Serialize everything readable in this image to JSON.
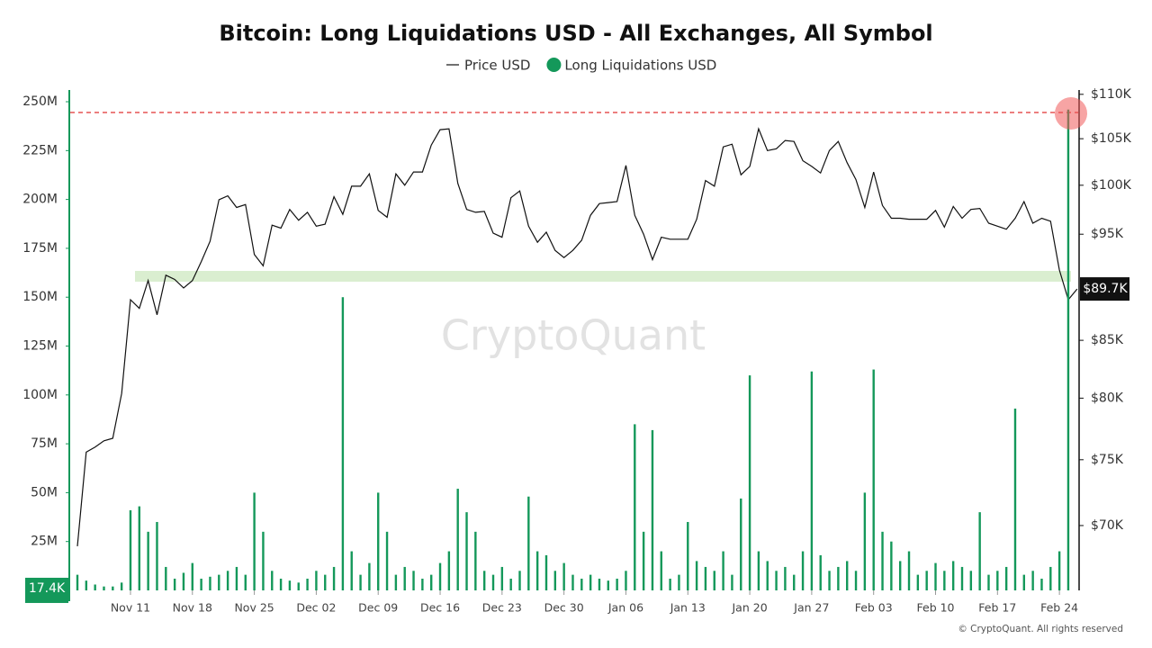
{
  "chart_data": {
    "type": "combo",
    "title": "Bitcoin: Long Liquidations USD - All Exchanges, All Symbol",
    "watermark": "CryptoQuant",
    "copyright": "© CryptoQuant. All rights reserved",
    "x": [
      "Nov 05",
      "Nov 06",
      "Nov 07",
      "Nov 08",
      "Nov 09",
      "Nov 10",
      "Nov 11",
      "Nov 12",
      "Nov 13",
      "Nov 14",
      "Nov 15",
      "Nov 16",
      "Nov 17",
      "Nov 18",
      "Nov 19",
      "Nov 20",
      "Nov 21",
      "Nov 22",
      "Nov 23",
      "Nov 24",
      "Nov 25",
      "Nov 26",
      "Nov 27",
      "Nov 28",
      "Nov 29",
      "Nov 30",
      "Dec 01",
      "Dec 02",
      "Dec 03",
      "Dec 04",
      "Dec 05",
      "Dec 06",
      "Dec 07",
      "Dec 08",
      "Dec 09",
      "Dec 10",
      "Dec 11",
      "Dec 12",
      "Dec 13",
      "Dec 14",
      "Dec 15",
      "Dec 16",
      "Dec 17",
      "Dec 18",
      "Dec 19",
      "Dec 20",
      "Dec 21",
      "Dec 22",
      "Dec 23",
      "Dec 24",
      "Dec 25",
      "Dec 26",
      "Dec 27",
      "Dec 28",
      "Dec 29",
      "Dec 30",
      "Dec 31",
      "Jan 01",
      "Jan 02",
      "Jan 03",
      "Jan 04",
      "Jan 05",
      "Jan 06",
      "Jan 07",
      "Jan 08",
      "Jan 09",
      "Jan 10",
      "Jan 11",
      "Jan 12",
      "Jan 13",
      "Jan 14",
      "Jan 15",
      "Jan 16",
      "Jan 17",
      "Jan 18",
      "Jan 19",
      "Jan 20",
      "Jan 21",
      "Jan 22",
      "Jan 23",
      "Jan 24",
      "Jan 25",
      "Jan 26",
      "Jan 27",
      "Jan 28",
      "Jan 29",
      "Jan 30",
      "Jan 31",
      "Feb 01",
      "Feb 02",
      "Feb 03",
      "Feb 04",
      "Feb 05",
      "Feb 06",
      "Feb 07",
      "Feb 08",
      "Feb 09",
      "Feb 10",
      "Feb 11",
      "Feb 12",
      "Feb 13",
      "Feb 14",
      "Feb 15",
      "Feb 16",
      "Feb 17",
      "Feb 18",
      "Feb 19",
      "Feb 20",
      "Feb 21",
      "Feb 22",
      "Feb 23",
      "Feb 24",
      "Feb 25",
      "Feb 26"
    ],
    "xticks": [
      "Nov 11",
      "Nov 18",
      "Nov 25",
      "Dec 02",
      "Dec 09",
      "Dec 16",
      "Dec 23",
      "Dec 30",
      "Jan 06",
      "Jan 13",
      "Jan 20",
      "Jan 27",
      "Feb 03",
      "Feb 10",
      "Feb 17",
      "Feb 24"
    ],
    "series": [
      {
        "name": "Price USD",
        "type": "line",
        "axis": "y2",
        "color": "#111111",
        "values": [
          68.5,
          75.6,
          76.0,
          76.5,
          76.7,
          80.4,
          88.7,
          87.9,
          90.5,
          87.3,
          91.0,
          90.6,
          89.8,
          90.5,
          92.3,
          94.3,
          98.5,
          98.9,
          97.7,
          98.0,
          93.0,
          91.9,
          95.9,
          95.6,
          97.5,
          96.4,
          97.2,
          95.8,
          96.0,
          98.8,
          97.0,
          99.9,
          99.9,
          101.2,
          97.4,
          96.7,
          101.2,
          100.0,
          101.4,
          101.4,
          104.3,
          106.0,
          106.1,
          100.2,
          97.5,
          97.2,
          97.3,
          95.1,
          94.7,
          98.7,
          99.4,
          95.8,
          94.2,
          95.2,
          93.4,
          92.7,
          93.4,
          94.4,
          96.9,
          98.1,
          98.2,
          98.3,
          102.1,
          96.9,
          95.0,
          92.5,
          94.7,
          94.5,
          94.5,
          94.5,
          96.5,
          100.5,
          99.9,
          104.1,
          104.4,
          101.1,
          102.0,
          106.1,
          103.7,
          103.9,
          104.8,
          104.7,
          102.6,
          102.0,
          101.3,
          103.7,
          104.7,
          102.4,
          100.6,
          97.7,
          101.4,
          97.9,
          96.6,
          96.6,
          96.5,
          96.5,
          96.5,
          97.4,
          95.7,
          97.8,
          96.6,
          97.5,
          97.6,
          96.1,
          95.8,
          95.5,
          96.6,
          98.3,
          96.1,
          96.6,
          96.3,
          91.5,
          88.7,
          89.7
        ],
        "last_label": "$89.7K"
      },
      {
        "name": "Long Liquidations USD",
        "type": "bar",
        "axis": "y",
        "color": "#14985a",
        "values": [
          8,
          5,
          3,
          2,
          2,
          4,
          41,
          43,
          30,
          35,
          12,
          6,
          9,
          14,
          6,
          7,
          8,
          10,
          12,
          8,
          50,
          30,
          10,
          6,
          5,
          4,
          6,
          10,
          8,
          12,
          150,
          20,
          8,
          14,
          50,
          30,
          8,
          12,
          10,
          6,
          8,
          14,
          20,
          52,
          40,
          30,
          10,
          8,
          12,
          6,
          10,
          48,
          20,
          18,
          10,
          14,
          8,
          6,
          8,
          6,
          5,
          6,
          10,
          85,
          30,
          82,
          20,
          6,
          8,
          35,
          15,
          12,
          10,
          20,
          8,
          47,
          110,
          20,
          15,
          10,
          12,
          8,
          20,
          112,
          18,
          10,
          12,
          15,
          10,
          50,
          113,
          30,
          25,
          15,
          20,
          8,
          10,
          14,
          10,
          15,
          12,
          10,
          40,
          8,
          10,
          12,
          93,
          8,
          10,
          6,
          12,
          20,
          246,
          0.0174
        ],
        "last_label": "17.4K"
      }
    ],
    "ylim": [
      0,
      256
    ],
    "yticks": [
      {
        "value": 25,
        "label": "25M"
      },
      {
        "value": 50,
        "label": "50M"
      },
      {
        "value": 75,
        "label": "75M"
      },
      {
        "value": 100,
        "label": "100M"
      },
      {
        "value": 125,
        "label": "125M"
      },
      {
        "value": 150,
        "label": "150M"
      },
      {
        "value": 175,
        "label": "175M"
      },
      {
        "value": 200,
        "label": "200M"
      },
      {
        "value": 225,
        "label": "225M"
      },
      {
        "value": 250,
        "label": "250M"
      }
    ],
    "y2lim": [
      65.4,
      110.5
    ],
    "y2log": true,
    "y2ticks": [
      {
        "value": 70,
        "label": "$70K"
      },
      {
        "value": 75,
        "label": "$75K"
      },
      {
        "value": 80,
        "label": "$80K"
      },
      {
        "value": 85,
        "label": "$85K"
      },
      {
        "value": 95,
        "label": "$95K"
      },
      {
        "value": 100,
        "label": "$100K"
      },
      {
        "value": 105,
        "label": "$105K"
      },
      {
        "value": 110,
        "label": "$110K"
      }
    ],
    "grid": false
  }
}
